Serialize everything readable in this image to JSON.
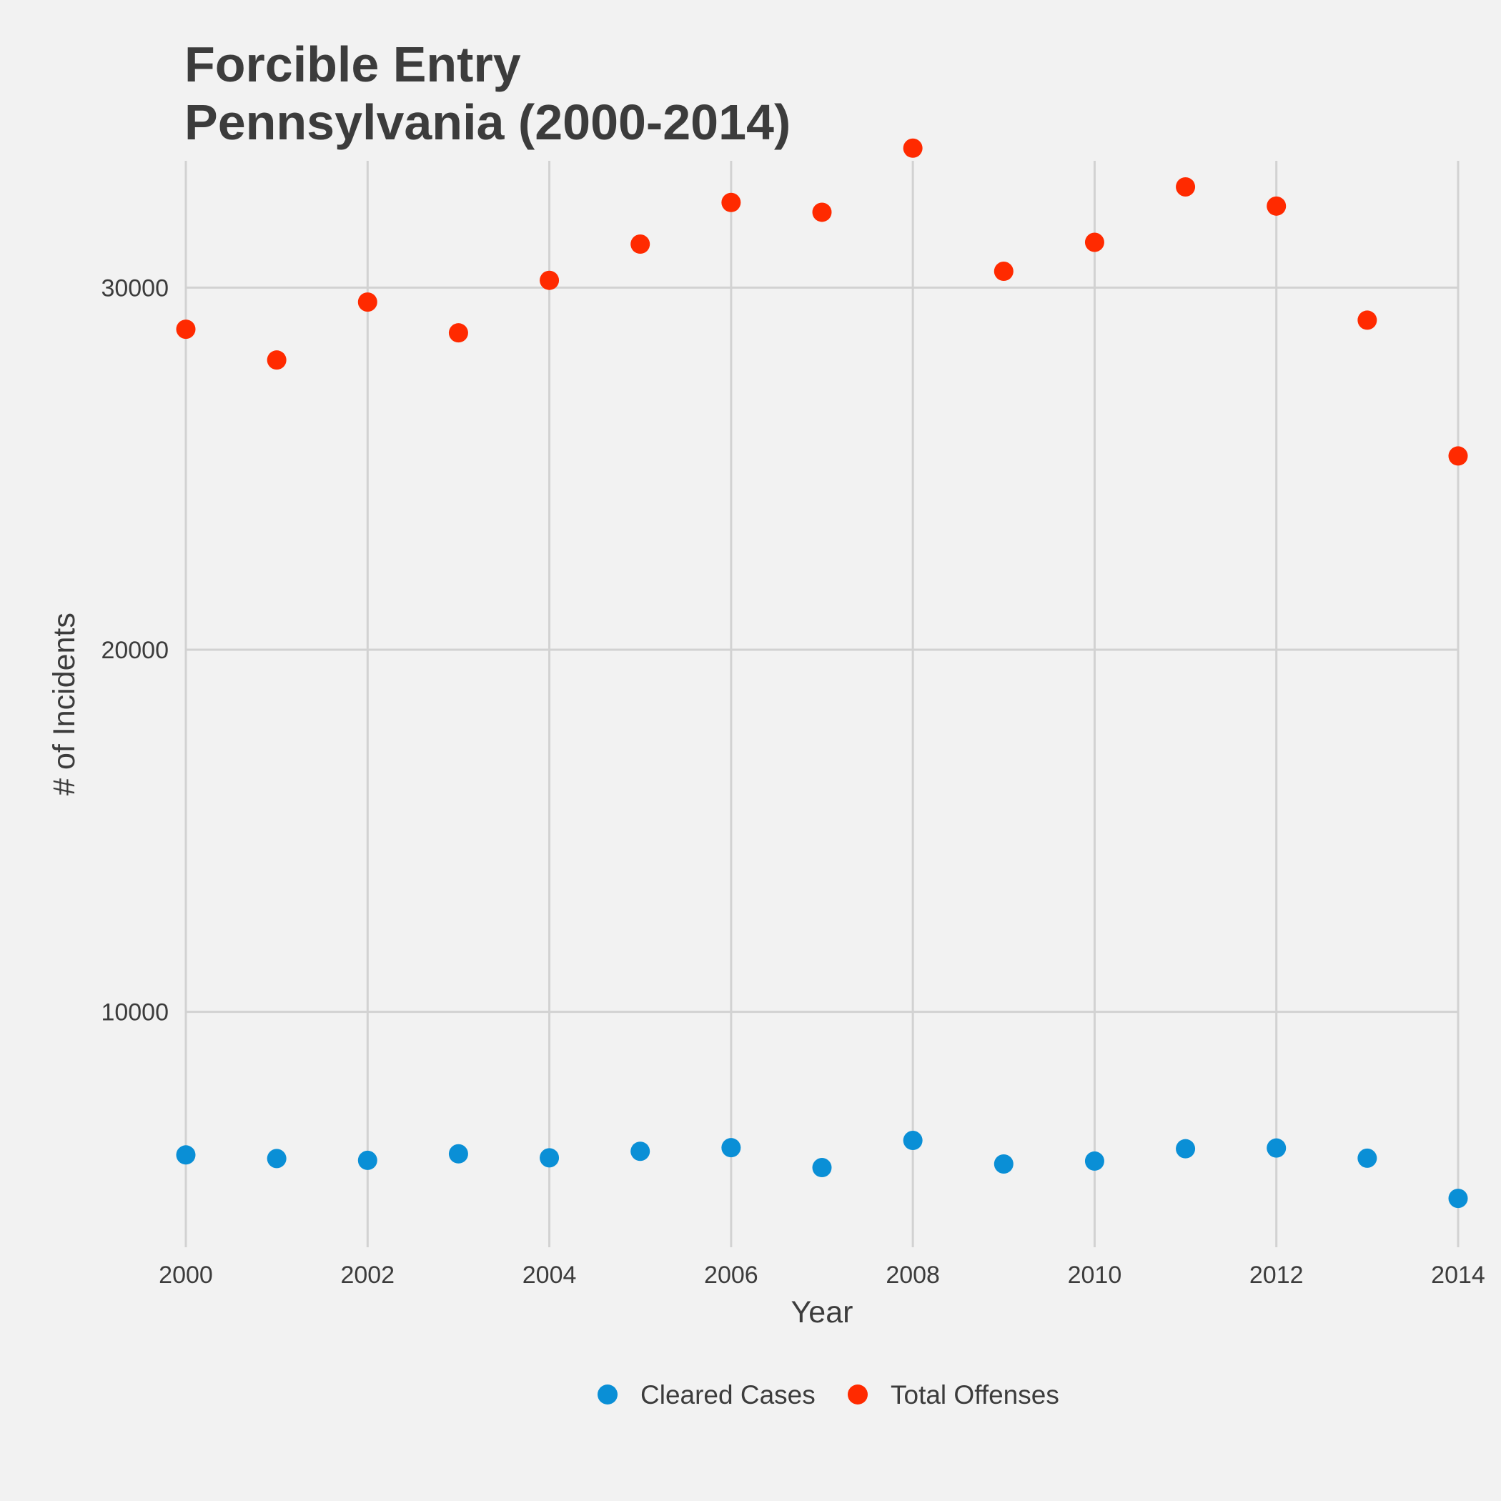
{
  "chart_data": {
    "type": "scatter",
    "title_lines": [
      "Forcible Entry",
      "Pennsylvania (2000-2014)"
    ],
    "xlabel": "Year",
    "ylabel": "# of Incidents",
    "x": [
      2000,
      2001,
      2002,
      2003,
      2004,
      2005,
      2006,
      2007,
      2008,
      2009,
      2010,
      2011,
      2012,
      2013,
      2014
    ],
    "xlim": [
      2000,
      2014
    ],
    "ylim": [
      3500,
      33500
    ],
    "x_ticks": [
      {
        "value": 2000,
        "label": "2000"
      },
      {
        "value": 2002,
        "label": "2002"
      },
      {
        "value": 2004,
        "label": "2004"
      },
      {
        "value": 2006,
        "label": "2006"
      },
      {
        "value": 2008,
        "label": "2008"
      },
      {
        "value": 2010,
        "label": "2010"
      },
      {
        "value": 2012,
        "label": "2012"
      },
      {
        "value": 2014,
        "label": "2014"
      }
    ],
    "y_ticks": [
      {
        "value": 10000,
        "label": "10000"
      },
      {
        "value": 20000,
        "label": "20000"
      },
      {
        "value": 30000,
        "label": "30000"
      }
    ],
    "grid": true,
    "legend_position": "bottom",
    "series": [
      {
        "name": "Cleared Cases",
        "color": "#0a8fd6",
        "values": [
          6050,
          5950,
          5900,
          6080,
          5970,
          6150,
          6250,
          5700,
          6450,
          5800,
          5880,
          6220,
          6240,
          5960,
          4850
        ]
      },
      {
        "name": "Total Offenses",
        "color": "#ff2a00",
        "values": [
          28850,
          28000,
          29600,
          28750,
          30200,
          31200,
          32350,
          32080,
          33850,
          30450,
          31250,
          32780,
          32250,
          29100,
          25350
        ]
      }
    ]
  }
}
